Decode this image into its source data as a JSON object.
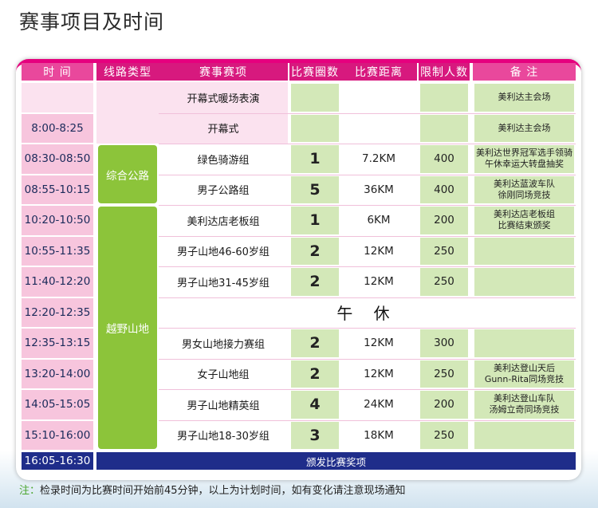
{
  "page_title": "赛事项目及时间",
  "headers": [
    "时 间",
    "线路类型",
    "赛事赛项",
    "比赛圈数",
    "比赛距离",
    "限制人数",
    "备 注"
  ],
  "route_types": [
    "综合公路",
    "越野山地"
  ],
  "rows": [
    {
      "time": "",
      "event": "开幕式暖场表演",
      "laps": "",
      "distance": "",
      "limit": "",
      "note": "美利达主会场"
    },
    {
      "time": "8:00-8:25",
      "event": "开幕式",
      "laps": "",
      "distance": "",
      "limit": "",
      "note": "美利达主会场"
    },
    {
      "time": "08:30-08:50",
      "event": "绿色骑游组",
      "laps": "1",
      "distance": "7.2KM",
      "limit": "400",
      "note": "美利达世界冠军选手领骑\n午休幸运大转盘抽奖"
    },
    {
      "time": "08:55-10:15",
      "event": "男子公路组",
      "laps": "5",
      "distance": "36KM",
      "limit": "400",
      "note": "美利达蓝波车队\n徐刚同场竞技"
    },
    {
      "time": "10:20-10:50",
      "event": "美利达店老板组",
      "laps": "1",
      "distance": "6KM",
      "limit": "200",
      "note": "美利达店老板组\n比赛结束颁奖"
    },
    {
      "time": "10:55-11:35",
      "event": "男子山地46-60岁组",
      "laps": "2",
      "distance": "12KM",
      "limit": "250",
      "note": ""
    },
    {
      "time": "11:40-12:20",
      "event": "男子山地31-45岁组",
      "laps": "2",
      "distance": "12KM",
      "limit": "250",
      "note": ""
    },
    {
      "time": "12:35-13:15",
      "event": "男女山地接力赛组",
      "laps": "2",
      "distance": "12KM",
      "limit": "300",
      "note": ""
    },
    {
      "time": "13:20-14:00",
      "event": "女子山地组",
      "laps": "2",
      "distance": "12KM",
      "limit": "250",
      "note": "美利达登山天后\nGunn-Rita同场竞技"
    },
    {
      "time": "14:05-15:05",
      "event": "男子山地精英组",
      "laps": "4",
      "distance": "24KM",
      "limit": "200",
      "note": "美利达登山车队\n汤姆立奇同场竞技"
    },
    {
      "time": "15:10-16:00",
      "event": "男子山地18-30岁组",
      "laps": "3",
      "distance": "18KM",
      "limit": "250",
      "note": ""
    }
  ],
  "lunch": {
    "time": "12:20-12:35",
    "label": "午 休"
  },
  "award": {
    "time": "16:05-16:30",
    "label": "颁发比赛奖项"
  },
  "footnote": {
    "label": "注：",
    "text": "检录时间为比赛时间开始前45分钟，以上为计划时间，如有变化请注意现场通知"
  }
}
